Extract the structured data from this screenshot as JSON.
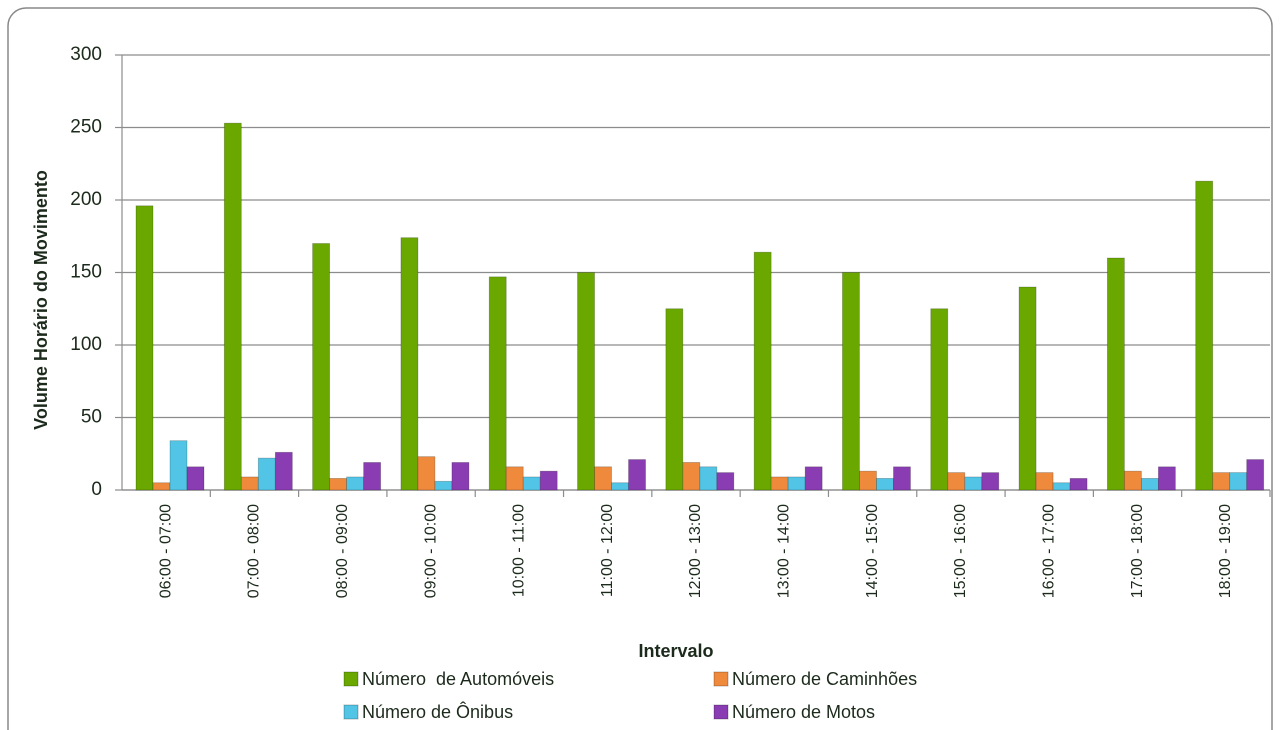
{
  "chart_data": {
    "type": "bar",
    "x_label": "Intervalo",
    "y_label": "Volume Horário do Movimento",
    "categories": [
      "06:00 - 07:00",
      "07:00 - 08:00",
      "08:00 - 09:00",
      "09:00 - 10:00",
      "10:00 - 11:00",
      "11:00 - 12:00",
      "12:00 - 13:00",
      "13:00 - 14:00",
      "14:00 - 15:00",
      "15:00 - 16:00",
      "16:00 - 17:00",
      "17:00 - 18:00",
      "18:00 - 19:00"
    ],
    "series": [
      {
        "name": "Número  de Automóveis",
        "color": "#6aa800",
        "values": [
          196,
          253,
          170,
          174,
          147,
          150,
          125,
          164,
          150,
          125,
          140,
          160,
          213
        ]
      },
      {
        "name": "Número de Caminhões",
        "color": "#ef8a3c",
        "values": [
          5,
          9,
          8,
          23,
          16,
          16,
          19,
          9,
          13,
          12,
          12,
          13,
          12
        ]
      },
      {
        "name": "Número de Ônibus",
        "color": "#52c5e6",
        "values": [
          34,
          22,
          9,
          6,
          9,
          5,
          16,
          9,
          8,
          9,
          5,
          8,
          12
        ]
      },
      {
        "name": "Número de Motos",
        "color": "#8a3db3",
        "values": [
          16,
          26,
          19,
          19,
          13,
          21,
          12,
          16,
          16,
          12,
          8,
          16,
          21
        ]
      }
    ],
    "ylim": [
      0,
      300
    ],
    "yticks": [
      0,
      50,
      100,
      150,
      200,
      250,
      300
    ],
    "grid": true
  }
}
